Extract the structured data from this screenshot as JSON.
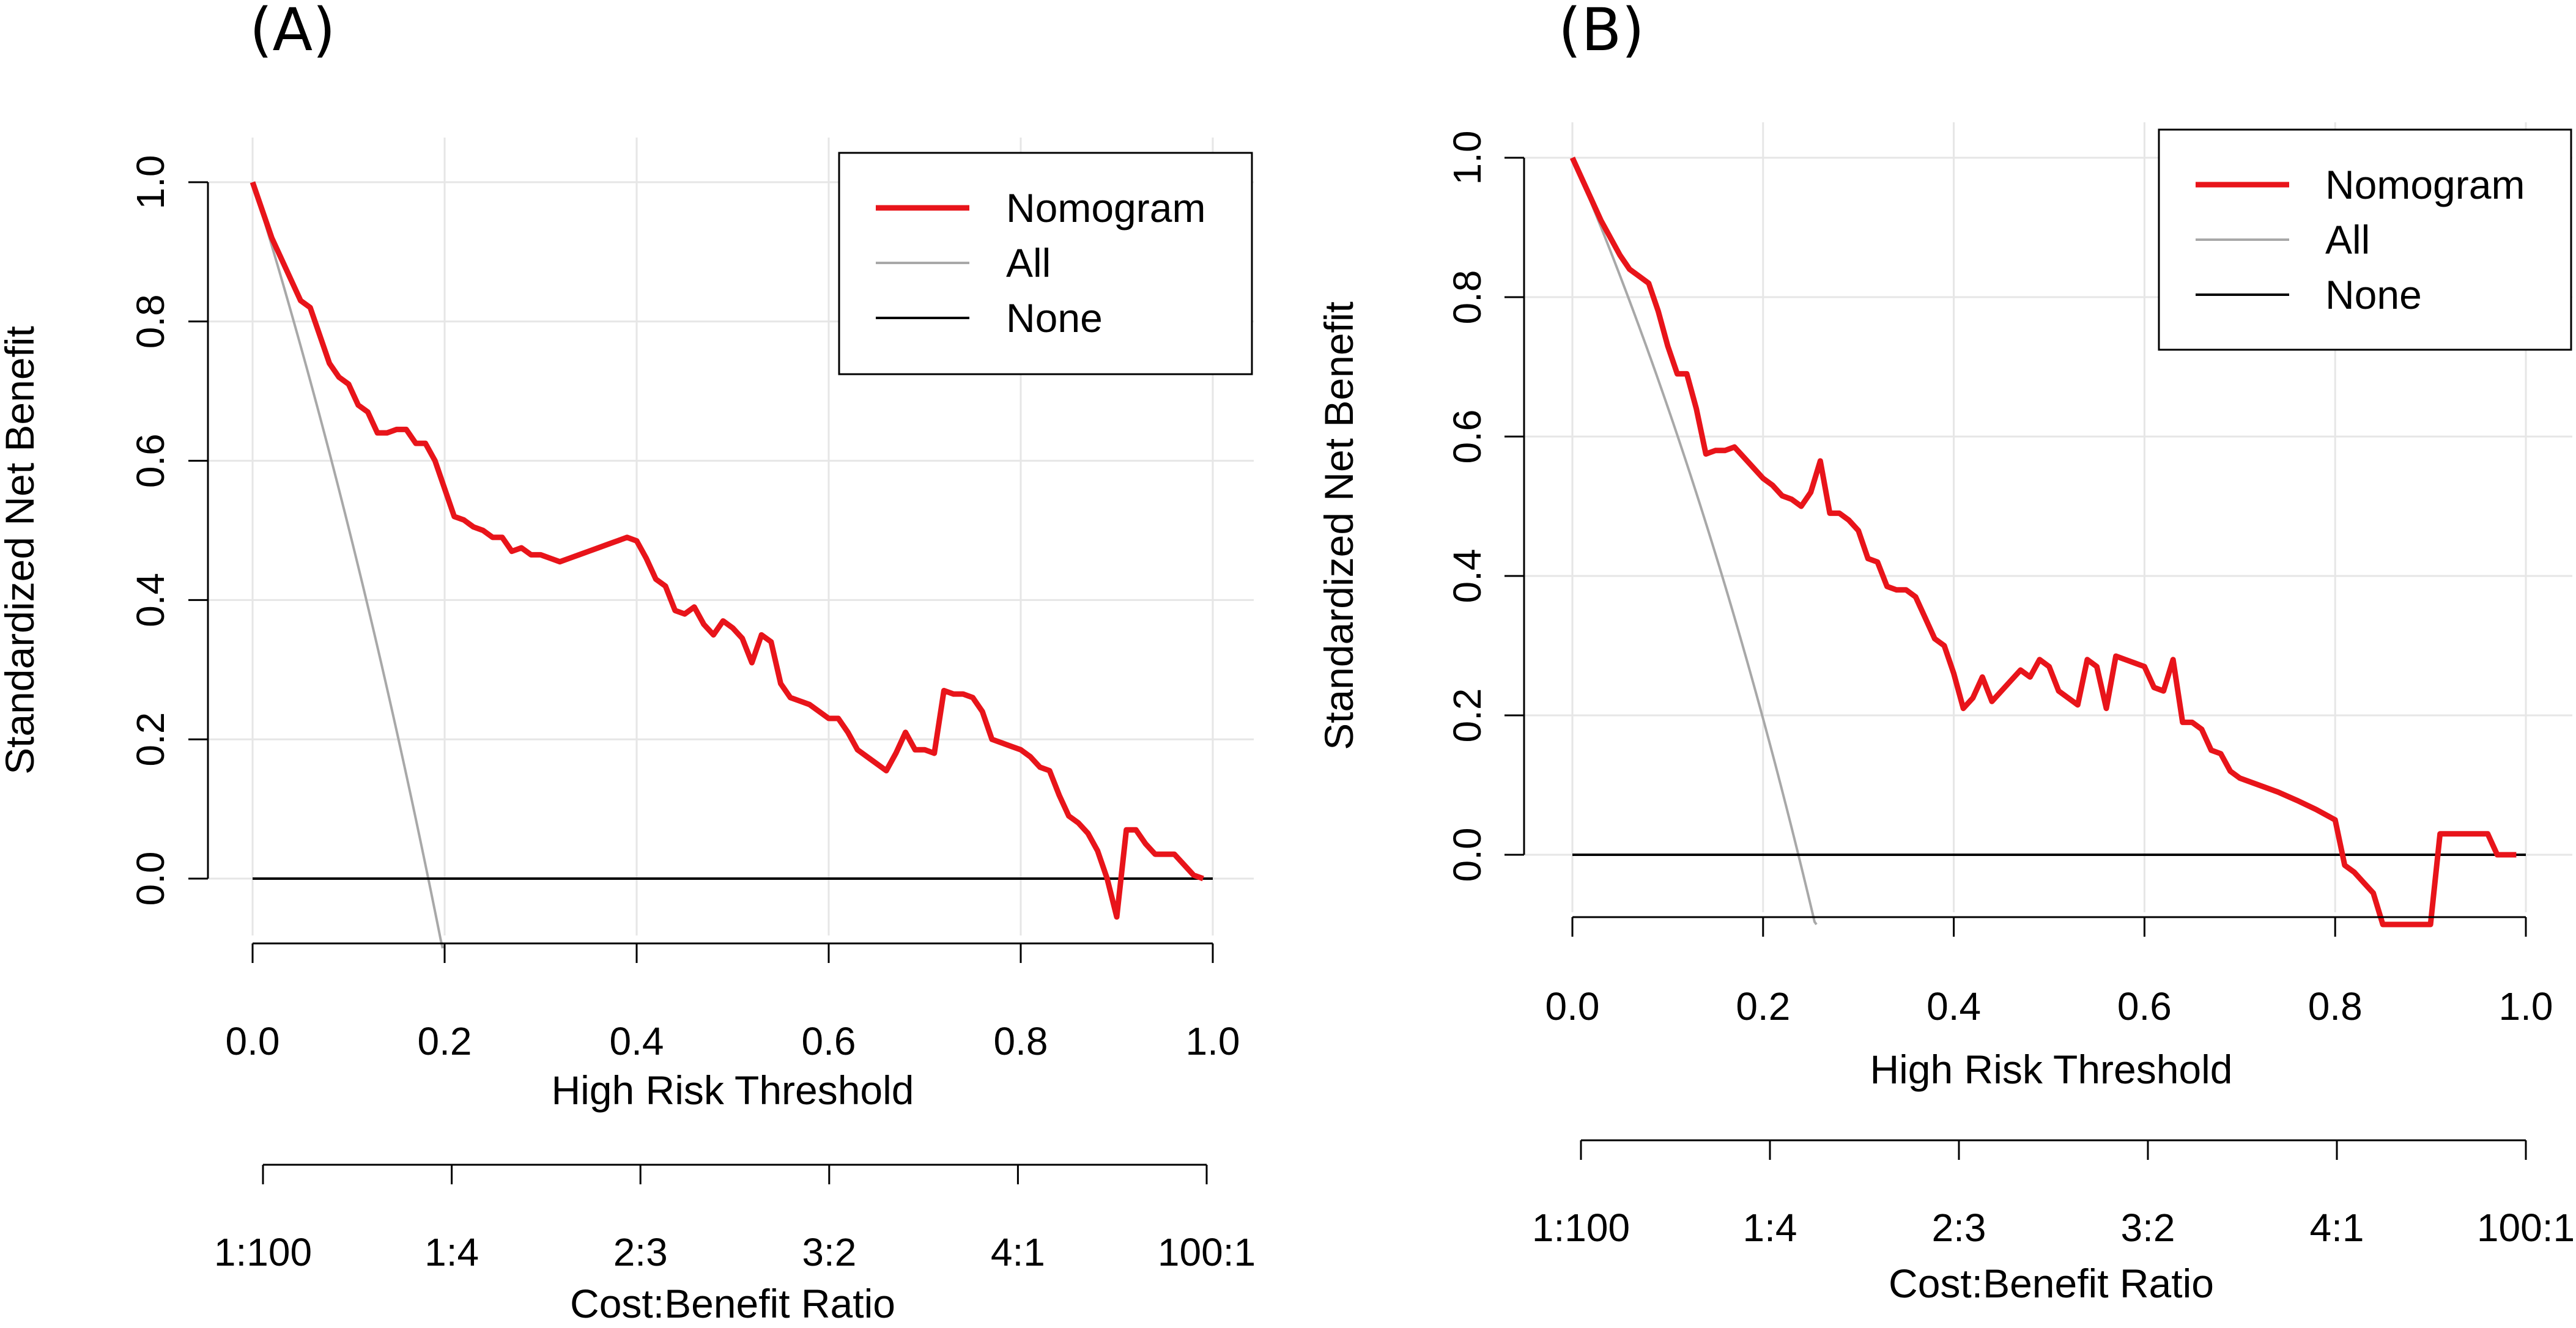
{
  "colors": {
    "nomogram": "#e8141a",
    "all": "#a8a8a8",
    "none": "#000000",
    "grid": "#e6e6e6"
  },
  "chart_data": [
    {
      "panel_label": "(A)",
      "type": "line",
      "xlabel": "High Risk Threshold",
      "ylabel": "Standardized Net Benefit",
      "xlim": [
        0.0,
        1.0
      ],
      "ylim": [
        -0.1,
        1.0
      ],
      "x_ticks": [
        "0.0",
        "0.2",
        "0.4",
        "0.6",
        "0.8",
        "1.0"
      ],
      "y_ticks": [
        "0.0",
        "0.2",
        "0.4",
        "0.6",
        "0.8",
        "1.0"
      ],
      "secondary_axis": {
        "label": "Cost:Benefit Ratio",
        "ticks": [
          "1:100",
          "1:4",
          "2:3",
          "3:2",
          "4:1",
          "100:1"
        ]
      },
      "legend": {
        "position": "top-right",
        "entries": [
          "Nomogram",
          "All",
          "None"
        ]
      },
      "series": [
        {
          "name": "Nomogram",
          "x": [
            0.0,
            0.01,
            0.02,
            0.03,
            0.04,
            0.05,
            0.06,
            0.07,
            0.08,
            0.09,
            0.1,
            0.11,
            0.12,
            0.13,
            0.14,
            0.15,
            0.16,
            0.17,
            0.18,
            0.19,
            0.2,
            0.21,
            0.22,
            0.23,
            0.24,
            0.25,
            0.26,
            0.27,
            0.28,
            0.29,
            0.3,
            0.31,
            0.32,
            0.33,
            0.34,
            0.35,
            0.36,
            0.37,
            0.38,
            0.39,
            0.4,
            0.41,
            0.42,
            0.43,
            0.44,
            0.45,
            0.46,
            0.47,
            0.48,
            0.49,
            0.5,
            0.51,
            0.52,
            0.53,
            0.54,
            0.55,
            0.56,
            0.57,
            0.58,
            0.59,
            0.6,
            0.61,
            0.62,
            0.63,
            0.64,
            0.65,
            0.66,
            0.67,
            0.68,
            0.69,
            0.7,
            0.71,
            0.72,
            0.73,
            0.74,
            0.75,
            0.76,
            0.77,
            0.78,
            0.79,
            0.8,
            0.81,
            0.82,
            0.83,
            0.84,
            0.85,
            0.86,
            0.87,
            0.88,
            0.89,
            0.9,
            0.91,
            0.92,
            0.93,
            0.94,
            0.95,
            0.96,
            0.97,
            0.98,
            0.99
          ],
          "y": [
            1.0,
            0.96,
            0.92,
            0.89,
            0.86,
            0.83,
            0.82,
            0.78,
            0.74,
            0.72,
            0.71,
            0.68,
            0.67,
            0.64,
            0.64,
            0.645,
            0.645,
            0.625,
            0.625,
            0.6,
            0.56,
            0.52,
            0.515,
            0.505,
            0.5,
            0.49,
            0.49,
            0.47,
            0.475,
            0.465,
            0.465,
            0.46,
            0.455,
            0.46,
            0.465,
            0.47,
            0.475,
            0.48,
            0.485,
            0.49,
            0.485,
            0.46,
            0.43,
            0.42,
            0.385,
            0.38,
            0.39,
            0.365,
            0.35,
            0.37,
            0.36,
            0.345,
            0.31,
            0.35,
            0.34,
            0.28,
            0.26,
            0.255,
            0.25,
            0.24,
            0.23,
            0.23,
            0.21,
            0.185,
            0.175,
            0.165,
            0.155,
            0.18,
            0.21,
            0.185,
            0.185,
            0.18,
            0.27,
            0.265,
            0.265,
            0.26,
            0.24,
            0.2,
            0.195,
            0.19,
            0.185,
            0.175,
            0.16,
            0.155,
            0.12,
            0.09,
            0.08,
            0.065,
            0.04,
            0.0,
            -0.055,
            0.07,
            0.07,
            0.05,
            0.035,
            0.035,
            0.035,
            0.02,
            0.005,
            0.0
          ]
        },
        {
          "name": "All",
          "prevalence": 0.183
        },
        {
          "name": "None",
          "y_constant": 0.0
        }
      ]
    },
    {
      "panel_label": "(B)",
      "type": "line",
      "xlabel": "High Risk Threshold",
      "ylabel": "Standardized Net Benefit",
      "xlim": [
        0.0,
        1.0
      ],
      "ylim": [
        -0.1,
        1.0
      ],
      "x_ticks": [
        "0.0",
        "0.2",
        "0.4",
        "0.6",
        "0.8",
        "1.0"
      ],
      "y_ticks": [
        "0.0",
        "0.2",
        "0.4",
        "0.6",
        "0.8",
        "1.0"
      ],
      "secondary_axis": {
        "label": "Cost:Benefit Ratio",
        "ticks": [
          "1:100",
          "1:4",
          "2:3",
          "3:2",
          "4:1",
          "100:1"
        ]
      },
      "legend": {
        "position": "top-right",
        "entries": [
          "Nomogram",
          "All",
          "None"
        ]
      },
      "series": [
        {
          "name": "Nomogram",
          "x": [
            0.0,
            0.01,
            0.02,
            0.03,
            0.04,
            0.05,
            0.06,
            0.07,
            0.08,
            0.09,
            0.1,
            0.11,
            0.12,
            0.13,
            0.14,
            0.15,
            0.16,
            0.17,
            0.18,
            0.19,
            0.2,
            0.21,
            0.22,
            0.23,
            0.24,
            0.25,
            0.26,
            0.27,
            0.28,
            0.29,
            0.3,
            0.31,
            0.32,
            0.33,
            0.34,
            0.35,
            0.36,
            0.37,
            0.38,
            0.39,
            0.4,
            0.41,
            0.42,
            0.43,
            0.44,
            0.45,
            0.46,
            0.47,
            0.48,
            0.49,
            0.5,
            0.51,
            0.52,
            0.53,
            0.54,
            0.55,
            0.56,
            0.57,
            0.58,
            0.59,
            0.6,
            0.61,
            0.62,
            0.63,
            0.64,
            0.65,
            0.66,
            0.67,
            0.68,
            0.69,
            0.7,
            0.72,
            0.74,
            0.76,
            0.78,
            0.8,
            0.81,
            0.82,
            0.83,
            0.84,
            0.85,
            0.86,
            0.865,
            0.89,
            0.9,
            0.91,
            0.92,
            0.93,
            0.94,
            0.95,
            0.96,
            0.97,
            0.98,
            0.99
          ],
          "y": [
            1.0,
            0.97,
            0.94,
            0.91,
            0.885,
            0.86,
            0.84,
            0.83,
            0.82,
            0.78,
            0.73,
            0.69,
            0.69,
            0.64,
            0.575,
            0.58,
            0.58,
            0.585,
            0.57,
            0.555,
            0.54,
            0.53,
            0.515,
            0.51,
            0.5,
            0.52,
            0.565,
            0.49,
            0.49,
            0.48,
            0.465,
            0.425,
            0.42,
            0.385,
            0.38,
            0.38,
            0.37,
            0.34,
            0.31,
            0.3,
            0.26,
            0.21,
            0.225,
            0.255,
            0.22,
            0.235,
            0.25,
            0.265,
            0.255,
            0.28,
            0.27,
            0.235,
            0.225,
            0.215,
            0.28,
            0.27,
            0.21,
            0.285,
            0.28,
            0.275,
            0.27,
            0.24,
            0.235,
            0.28,
            0.19,
            0.19,
            0.18,
            0.15,
            0.145,
            0.12,
            0.11,
            0.1,
            0.09,
            0.078,
            0.065,
            0.05,
            -0.015,
            -0.025,
            -0.04,
            -0.055,
            -0.1,
            -0.1,
            -0.1,
            -0.1,
            -0.1,
            0.03,
            0.03,
            0.03,
            0.03,
            0.03,
            0.03,
            0.0,
            0.0,
            0.0
          ]
        },
        {
          "name": "All",
          "prevalence": 0.237
        },
        {
          "name": "None",
          "y_constant": 0.0
        }
      ]
    }
  ]
}
